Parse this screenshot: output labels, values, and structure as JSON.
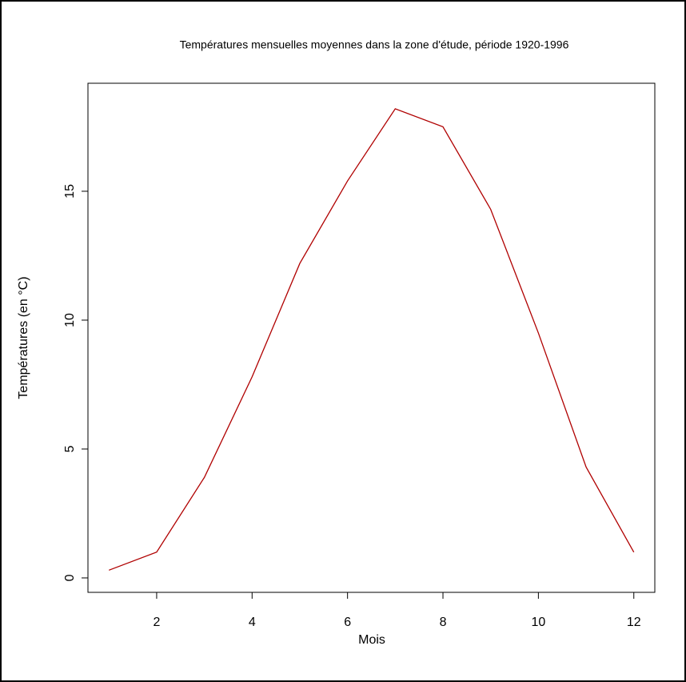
{
  "chart_data": {
    "type": "line",
    "title": "Températures mensuelles moyennes dans la zone d'étude, période 1920-1996",
    "x_label": "Mois",
    "y_label": "Températures (en °C)",
    "x": [
      1,
      2,
      3,
      4,
      5,
      6,
      7,
      8,
      9,
      10,
      11,
      12
    ],
    "series": [
      {
        "color": "#b00000",
        "values": [
          0.3,
          1.0,
          3.9,
          7.8,
          12.2,
          15.4,
          18.2,
          17.5,
          14.3,
          9.5,
          4.3,
          1.0
        ]
      }
    ],
    "xlim": [
      0.56,
      12.44
    ],
    "xticks": [
      2,
      4,
      6,
      8,
      10,
      12
    ],
    "ylim": [
      -0.56,
      19.19
    ],
    "yticks": [
      0,
      5,
      10,
      15
    ]
  }
}
